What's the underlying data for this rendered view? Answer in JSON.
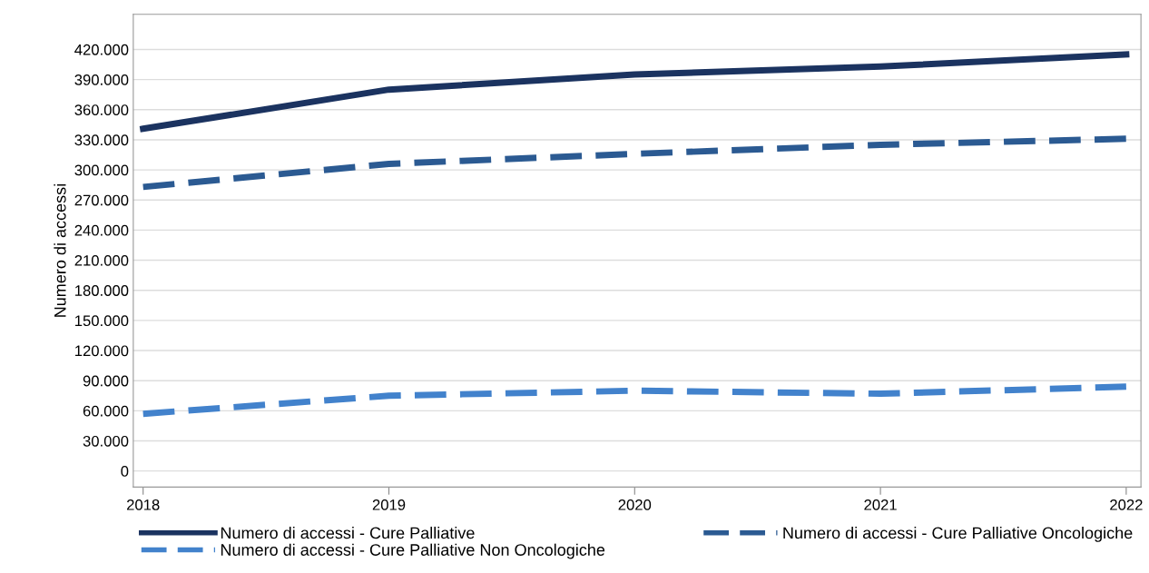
{
  "chart_data": {
    "type": "line",
    "ylabel": "Numero di accessi",
    "x": [
      2018,
      2019,
      2020,
      2021,
      2022
    ],
    "series": [
      {
        "name": "Numero di accessi - Cure Palliative",
        "color": "#1b3360",
        "values": [
          341000,
          380000,
          395000,
          403000,
          415000
        ],
        "line_style": "solid"
      },
      {
        "name": "Numero di accessi - Cure Palliative Oncologiche",
        "color": "#2b5a92",
        "values": [
          283000,
          306000,
          316000,
          325000,
          331000
        ],
        "line_style": "dashed"
      },
      {
        "name": "Numero di accessi - Cure Palliative Non Oncologiche",
        "color": "#4282cc",
        "values": [
          57000,
          75000,
          80000,
          77000,
          84000
        ],
        "line_style": "dashed"
      }
    ],
    "xlim": [
      2017.96,
      2022.06
    ],
    "xticks": [
      2018,
      2019,
      2020,
      2021,
      2022
    ],
    "ylim": [
      -16000,
      455000
    ],
    "yticks": [
      {
        "value": 0,
        "label": "0"
      },
      {
        "value": 30000,
        "label": "30.000"
      },
      {
        "value": 60000,
        "label": "60.000"
      },
      {
        "value": 90000,
        "label": "90.000"
      },
      {
        "value": 120000,
        "label": "120.000"
      },
      {
        "value": 150000,
        "label": "150.000"
      },
      {
        "value": 180000,
        "label": "180.000"
      },
      {
        "value": 210000,
        "label": "210.000"
      },
      {
        "value": 240000,
        "label": "240.000"
      },
      {
        "value": 270000,
        "label": "270.000"
      },
      {
        "value": 300000,
        "label": "300.000"
      },
      {
        "value": 330000,
        "label": "330.000"
      },
      {
        "value": 360000,
        "label": "360.000"
      },
      {
        "value": 390000,
        "label": "390.000"
      },
      {
        "value": 420000,
        "label": "420.000"
      }
    ],
    "grid": "y",
    "legend": "bottom",
    "marker": "none"
  }
}
